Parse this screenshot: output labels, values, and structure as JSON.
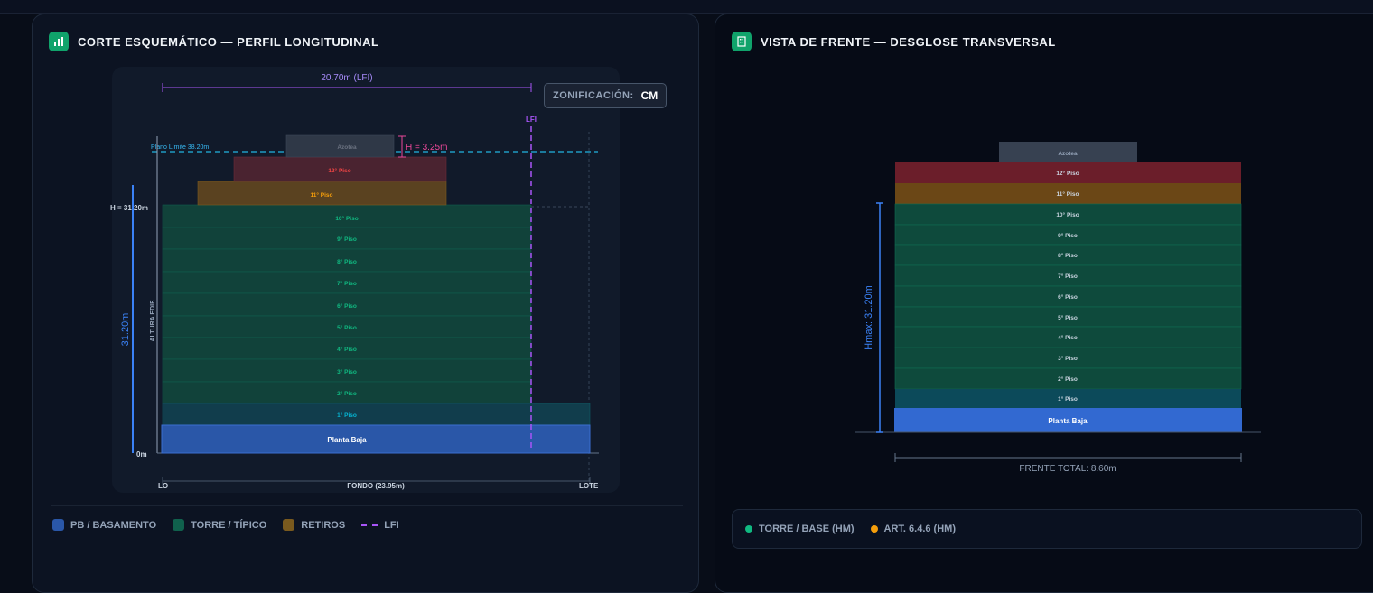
{
  "left_panel": {
    "title": "CORTE ESQUEMÁTICO — PERFIL LONGITUDINAL",
    "icon": "bar-chart-icon",
    "zoning_label": "ZONIFICACIÓN:",
    "zoning_value": "CM",
    "lfi_dim_label": "20.70m (LFI)",
    "lfi_label": "LFI",
    "plano_limite_label": "Plano Límite 38.20m",
    "h_label": "H = 31.20m",
    "roof_height_label": "H = 3.25m",
    "vertical_dim_label": "31.20m",
    "altura_label": "ALTURA EDIF.",
    "zero_label": "0m",
    "lo_label": "LO",
    "fondo_label": "FONDO (23.95m)",
    "lote_label": "LOTE",
    "floors": {
      "azotea": "Azotea",
      "p12": "12° Piso",
      "p11": "11° Piso",
      "p10": "10° Piso",
      "p9": "9° Piso",
      "p8": "8° Piso",
      "p7": "7° Piso",
      "p6": "6° Piso",
      "p5": "5° Piso",
      "p4": "4° Piso",
      "p3": "3° Piso",
      "p2": "2° Piso",
      "p1": "1° Piso",
      "pb": "Planta Baja"
    },
    "legend": [
      {
        "label": "PB / BASAMENTO",
        "color": "#2a57a8"
      },
      {
        "label": "TORRE / TÍPICO",
        "color": "#10614d"
      },
      {
        "label": "RETIROS",
        "color": "#7a5a1e"
      },
      {
        "label": "LFI",
        "color": "#a855f7"
      }
    ]
  },
  "right_panel": {
    "title": "VISTA DE FRENTE — DESGLOSE TRANSVERSAL",
    "icon": "building-icon",
    "hmax_label": "Hmax: 31.20m",
    "frente_label": "FRENTE TOTAL: 8.60m",
    "floors": {
      "azotea": "Azotea",
      "p12": "12° Piso",
      "p11": "11° Piso",
      "p10": "10° Piso",
      "p9": "9° Piso",
      "p8": "8° Piso",
      "p7": "7° Piso",
      "p6": "6° Piso",
      "p5": "5° Piso",
      "p4": "4° Piso",
      "p3": "3° Piso",
      "p2": "2° Piso",
      "p1": "1° Piso",
      "pb": "Planta Baja"
    },
    "legend": [
      {
        "label": "TORRE / BASE (HM)",
        "color": "#10b981"
      },
      {
        "label": "ART. 6.4.6 (HM)",
        "color": "#f59e0b"
      }
    ]
  }
}
